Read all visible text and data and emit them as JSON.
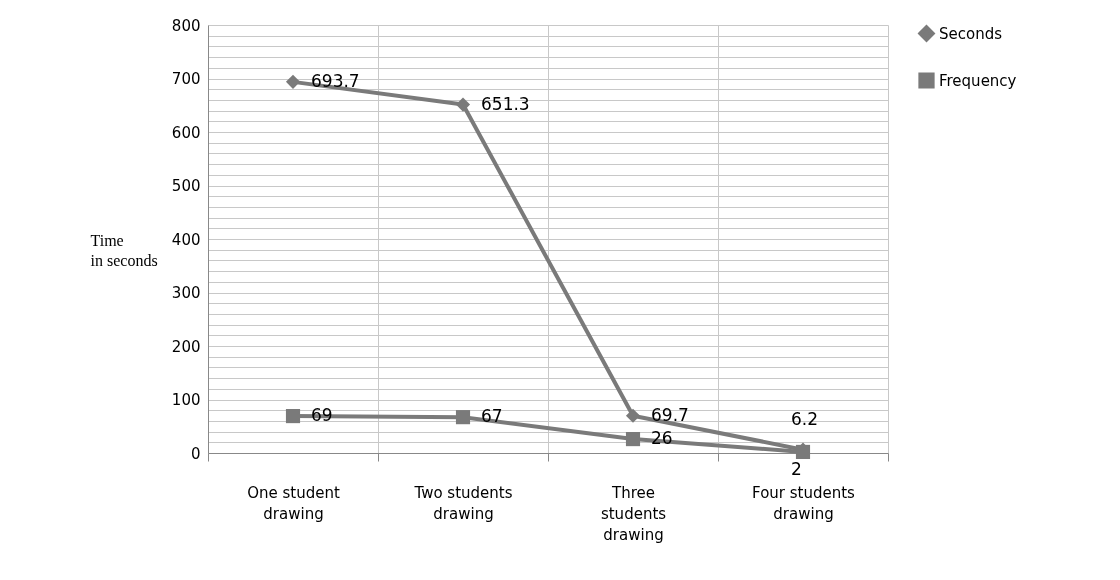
{
  "chart_data": {
    "type": "line",
    "ylabel": "Time in seconds",
    "categories": [
      "One student drawing",
      "Two students drawing",
      "Three students drawing",
      "Four students drawing"
    ],
    "series": [
      {
        "name": "Seconds",
        "color": "#7a7a7a",
        "marker": "diamond",
        "values": [
          693.7,
          651.3,
          69.7,
          6.2
        ]
      },
      {
        "name": "Frequency",
        "color": "#7a7a7a",
        "marker": "square",
        "values": [
          69,
          67,
          26,
          2
        ]
      }
    ],
    "ylim": [
      0,
      800
    ],
    "yticks": [
      0,
      {
        "value": 20,
        "label": null
      },
      {
        "value": 40,
        "label": null
      },
      {
        "value": 60,
        "label": null
      },
      {
        "value": 80,
        "label": null
      },
      100,
      {
        "value": 120,
        "label": null
      },
      {
        "value": 140,
        "label": null
      },
      {
        "value": 160,
        "label": null
      },
      {
        "value": 180,
        "label": null
      },
      200,
      {
        "value": 220,
        "label": null
      },
      {
        "value": 240,
        "label": null
      },
      {
        "value": 260,
        "label": null
      },
      {
        "value": 280,
        "label": null
      },
      300,
      {
        "value": 320,
        "label": null
      },
      {
        "value": 340,
        "label": null
      },
      {
        "value": 360,
        "label": null
      },
      {
        "value": 380,
        "label": null
      },
      400,
      {
        "value": 420,
        "label": null
      },
      {
        "value": 440,
        "label": null
      },
      {
        "value": 460,
        "label": null
      },
      {
        "value": 480,
        "label": null
      },
      500,
      {
        "value": 520,
        "label": null
      },
      {
        "value": 540,
        "label": null
      },
      {
        "value": 560,
        "label": null
      },
      {
        "value": 580,
        "label": null
      },
      600,
      {
        "value": 620,
        "label": null
      },
      {
        "value": 640,
        "label": null
      },
      {
        "value": 660,
        "label": null
      },
      {
        "value": 680,
        "label": null
      },
      700,
      {
        "value": 720,
        "label": null
      },
      {
        "value": 740,
        "label": null
      },
      {
        "value": 760,
        "label": null
      },
      {
        "value": 780,
        "label": null
      },
      800
    ],
    "grid": true,
    "legend": "right",
    "data_labels": true,
    "line_style": "solid"
  }
}
